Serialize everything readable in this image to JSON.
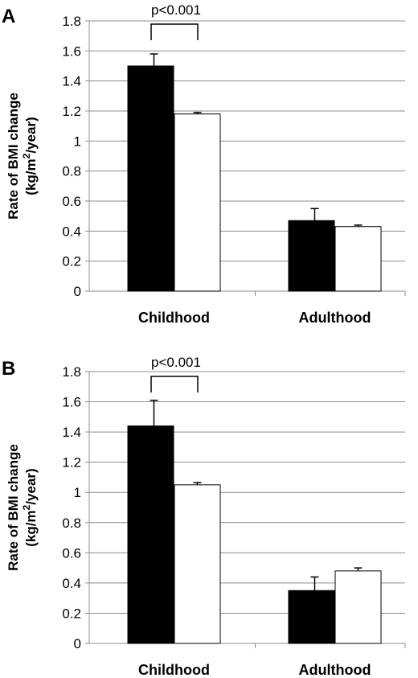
{
  "chart_data": [
    {
      "panel": "A",
      "type": "bar",
      "categories": [
        "Childhood",
        "Adulthood"
      ],
      "series": [
        {
          "color": "#000000",
          "values": [
            1.5,
            0.47
          ],
          "errors": [
            0.08,
            0.08
          ]
        },
        {
          "color": "#ffffff",
          "values": [
            1.18,
            0.43
          ],
          "errors": [
            0.01,
            0.01
          ]
        }
      ],
      "ylabel_line1": "Rate of BMI change",
      "ylabel_line2_pre": "(kg/m",
      "ylabel_line2_sup": "2",
      "ylabel_line2_post": "/year)",
      "yticks": [
        "0",
        "0.2",
        "0.4",
        "0.6",
        "0.8",
        "1",
        "1.2",
        "1.4",
        "1.6",
        "1.8"
      ],
      "ylim": [
        0,
        1.8
      ],
      "grid": true,
      "annotation": {
        "text": "p<0.001",
        "category": "Childhood"
      }
    },
    {
      "panel": "B",
      "type": "bar",
      "categories": [
        "Childhood",
        "Adulthood"
      ],
      "series": [
        {
          "color": "#000000",
          "values": [
            1.44,
            0.35
          ],
          "errors": [
            0.17,
            0.09
          ]
        },
        {
          "color": "#ffffff",
          "values": [
            1.05,
            0.48
          ],
          "errors": [
            0.015,
            0.02
          ]
        }
      ],
      "ylabel_line1": "Rate of BMI change",
      "ylabel_line2_pre": "(kg/m",
      "ylabel_line2_sup": "2",
      "ylabel_line2_post": "/year)",
      "yticks": [
        "0",
        "0.2",
        "0.4",
        "0.6",
        "0.8",
        "1",
        "1.2",
        "1.4",
        "1.6",
        "1.8"
      ],
      "ylim": [
        0,
        1.8
      ],
      "grid": true,
      "annotation": {
        "text": "p<0.001",
        "category": "Childhood"
      }
    }
  ]
}
